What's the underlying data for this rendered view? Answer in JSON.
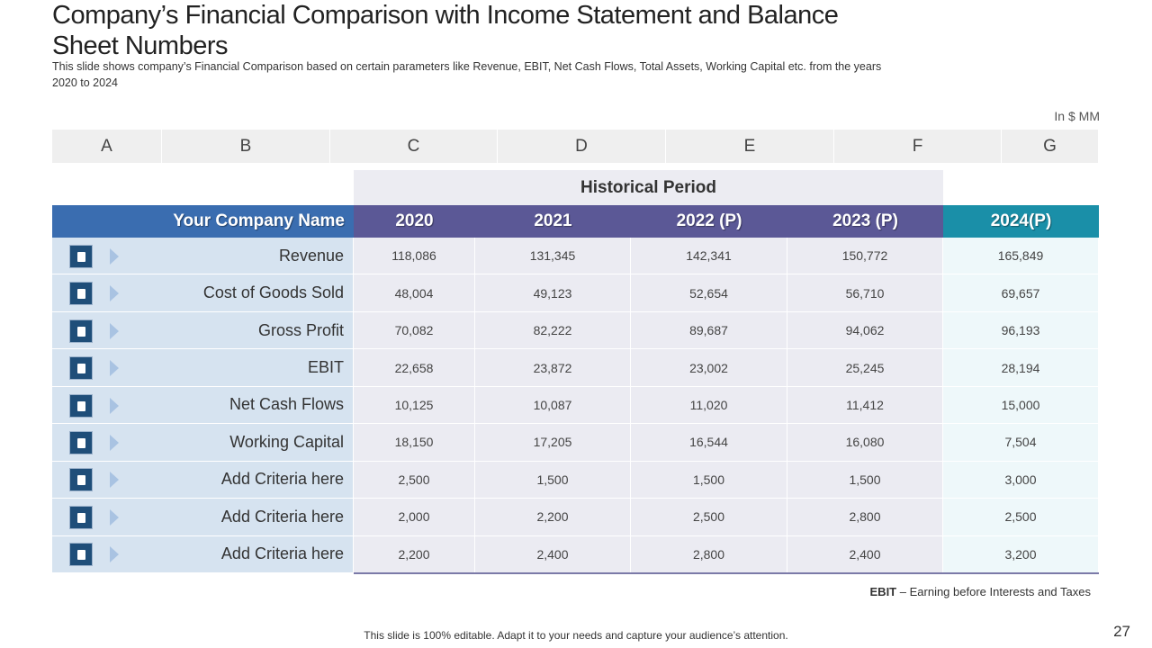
{
  "title": "Company’s Financial Comparison with Income Statement and Balance Sheet Numbers",
  "subtitle": "This slide shows company’s Financial Comparison based on certain parameters like Revenue, EBIT, Net Cash Flows, Total Assets, Working Capital etc. from the years 2020 to 2024",
  "unit": "In $ MM",
  "column_letters": [
    "A",
    "B",
    "C",
    "D",
    "E",
    "F",
    "G"
  ],
  "table": {
    "group_header": "Historical Period",
    "headers": [
      "Your Company Name",
      "2020",
      "2021",
      "2022 (P)",
      "2023 (P)",
      "2024(P)"
    ],
    "rows": [
      {
        "label": "Revenue",
        "values": [
          "118,086",
          "131,345",
          "142,341",
          "150,772",
          "165,849"
        ]
      },
      {
        "label": "Cost of Goods Sold",
        "values": [
          "48,004",
          "49,123",
          "52,654",
          "56,710",
          "69,657"
        ]
      },
      {
        "label": "Gross Profit",
        "values": [
          "70,082",
          "82,222",
          "89,687",
          "94,062",
          "96,193"
        ]
      },
      {
        "label": "EBIT",
        "values": [
          "22,658",
          "23,872",
          "23,002",
          "25,245",
          "28,194"
        ]
      },
      {
        "label": "Net Cash Flows",
        "values": [
          "10,125",
          "10,087",
          "11,020",
          "11,412",
          "15,000"
        ]
      },
      {
        "label": "Working Capital",
        "values": [
          "18,150",
          "17,205",
          "16,544",
          "16,080",
          "7,504"
        ]
      },
      {
        "label": "Add Criteria here",
        "values": [
          "2,500",
          "1,500",
          "1,500",
          "1,500",
          "3,000"
        ]
      },
      {
        "label": "Add Criteria here",
        "values": [
          "2,000",
          "2,200",
          "2,500",
          "2,800",
          "2,500"
        ]
      },
      {
        "label": "Add Criteria here",
        "values": [
          "2,200",
          "2,400",
          "2,800",
          "2,400",
          "3,200"
        ]
      }
    ]
  },
  "footnote": {
    "term": "EBIT",
    "definition": "– Earning before Interests and Taxes"
  },
  "footer": "This slide is 100% editable. Adapt it to your needs and capture your audience’s attention.",
  "page_number": "27"
}
